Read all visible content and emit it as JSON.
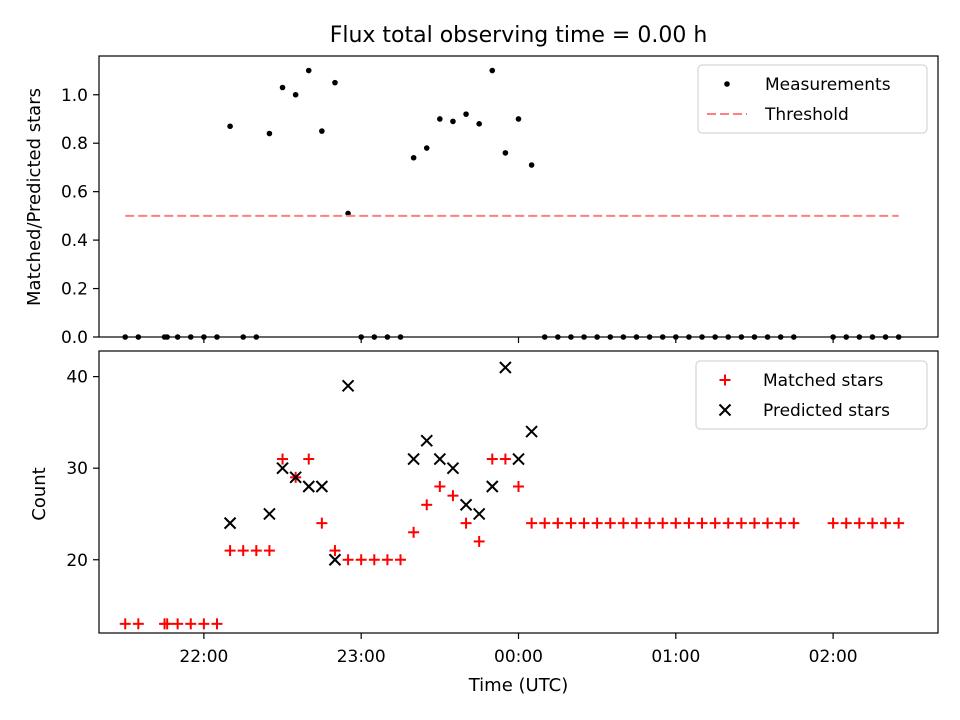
{
  "chart_data": [
    {
      "type": "scatter",
      "title": "Flux total observing time = 0.00 h",
      "xlabel": "",
      "ylabel": "Matched/Predicted stars",
      "xlim": [
        "21:20",
        "02:40"
      ],
      "ylim": [
        0,
        1.16
      ],
      "yticks": [
        0.0,
        0.2,
        0.4,
        0.6,
        0.8,
        1.0
      ],
      "ytick_labels": [
        "0.0",
        "0.2",
        "0.4",
        "0.6",
        "0.8",
        "1.0"
      ],
      "xticks": [
        "22:00",
        "23:00",
        "00:00",
        "01:00",
        "02:00"
      ],
      "show_x_tick_labels": false,
      "legend_position": "top-right",
      "grid": false,
      "series": [
        {
          "name": "Measurements",
          "marker": "dot",
          "color": "#000000",
          "x": [
            "21:30",
            "21:35",
            "21:45",
            "21:46",
            "21:50",
            "21:55",
            "22:00",
            "22:05",
            "22:10",
            "22:15",
            "22:20",
            "22:25",
            "22:30",
            "22:35",
            "22:40",
            "22:45",
            "22:50",
            "22:55",
            "23:00",
            "23:05",
            "23:10",
            "23:15",
            "23:20",
            "23:25",
            "23:30",
            "23:35",
            "23:40",
            "23:45",
            "23:50",
            "23:55",
            "00:00",
            "00:05",
            "00:10",
            "00:15",
            "00:20",
            "00:25",
            "00:30",
            "00:35",
            "00:40",
            "00:45",
            "00:50",
            "00:55",
            "01:00",
            "01:05",
            "01:10",
            "01:15",
            "01:20",
            "01:25",
            "01:30",
            "01:35",
            "01:40",
            "01:45",
            "02:00",
            "02:05",
            "02:10",
            "02:15",
            "02:20",
            "02:25"
          ],
          "y": [
            0,
            0,
            0,
            0,
            0,
            0,
            0,
            0,
            0.87,
            0,
            0,
            0.84,
            1.03,
            1.0,
            1.1,
            0.85,
            1.05,
            0.51,
            0,
            0,
            0,
            0,
            0.74,
            0.78,
            0.9,
            0.89,
            0.92,
            0.88,
            1.1,
            0.76,
            0.9,
            0.71,
            0,
            0,
            0,
            0,
            0,
            0,
            0,
            0,
            0,
            0,
            0,
            0,
            0,
            0,
            0,
            0,
            0,
            0,
            0,
            0,
            0,
            0,
            0,
            0,
            0,
            0
          ]
        },
        {
          "name": "Threshold",
          "line_style": "dashed",
          "color": "#ff7f7f",
          "x": [
            "21:30",
            "02:25"
          ],
          "y": [
            0.5,
            0.5
          ]
        }
      ]
    },
    {
      "type": "scatter",
      "title": "",
      "xlabel": "Time (UTC)",
      "ylabel": "Count",
      "xlim": [
        "21:20",
        "02:40"
      ],
      "ylim": [
        12,
        42.8
      ],
      "yticks": [
        20,
        30,
        40
      ],
      "ytick_labels": [
        "20",
        "30",
        "40"
      ],
      "xticks": [
        "22:00",
        "23:00",
        "00:00",
        "01:00",
        "02:00"
      ],
      "show_x_tick_labels": true,
      "legend_position": "top-right",
      "grid": false,
      "series": [
        {
          "name": "Matched stars",
          "marker": "plus",
          "color": "#ff0000",
          "x": [
            "21:30",
            "21:35",
            "21:45",
            "21:46",
            "21:50",
            "21:55",
            "22:00",
            "22:05",
            "22:10",
            "22:15",
            "22:20",
            "22:25",
            "22:30",
            "22:35",
            "22:40",
            "22:45",
            "22:50",
            "22:55",
            "23:00",
            "23:05",
            "23:10",
            "23:15",
            "23:20",
            "23:25",
            "23:30",
            "23:35",
            "23:40",
            "23:45",
            "23:50",
            "23:55",
            "00:00",
            "00:05",
            "00:10",
            "00:15",
            "00:20",
            "00:25",
            "00:30",
            "00:35",
            "00:40",
            "00:45",
            "00:50",
            "00:55",
            "01:00",
            "01:05",
            "01:10",
            "01:15",
            "01:20",
            "01:25",
            "01:30",
            "01:35",
            "01:40",
            "01:45",
            "02:00",
            "02:05",
            "02:10",
            "02:15",
            "02:20",
            "02:25"
          ],
          "y": [
            13,
            13,
            13,
            13,
            13,
            13,
            13,
            13,
            21,
            21,
            21,
            21,
            31,
            29,
            31,
            24,
            21,
            20,
            20,
            20,
            20,
            20,
            23,
            26,
            28,
            27,
            24,
            22,
            31,
            31,
            28,
            24,
            24,
            24,
            24,
            24,
            24,
            24,
            24,
            24,
            24,
            24,
            24,
            24,
            24,
            24,
            24,
            24,
            24,
            24,
            24,
            24,
            24,
            24,
            24,
            24,
            24,
            24
          ]
        },
        {
          "name": "Predicted stars",
          "marker": "x",
          "color": "#000000",
          "x": [
            "22:10",
            "22:25",
            "22:30",
            "22:35",
            "22:40",
            "22:45",
            "22:50",
            "22:55",
            "23:20",
            "23:25",
            "23:30",
            "23:35",
            "23:40",
            "23:45",
            "23:50",
            "23:55",
            "00:00",
            "00:05"
          ],
          "y": [
            24,
            25,
            30,
            29,
            28,
            28,
            20,
            39,
            31,
            33,
            31,
            30,
            26,
            25,
            28,
            41,
            31,
            34
          ]
        }
      ]
    }
  ]
}
